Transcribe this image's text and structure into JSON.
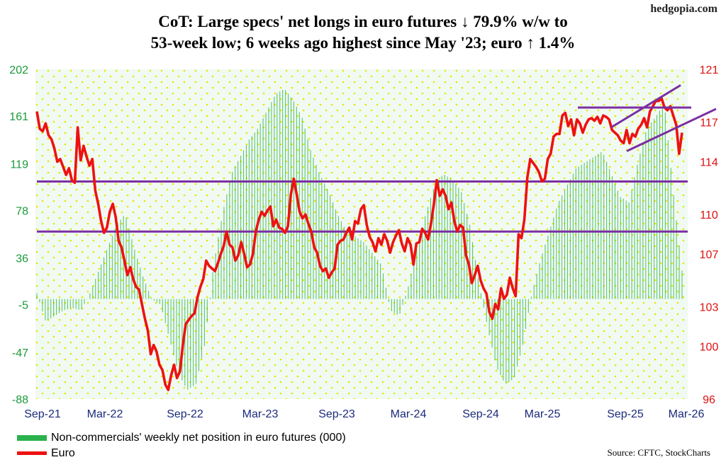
{
  "brand": "hedgopia.com",
  "title_line1": "CoT: Large specs' net longs in euro futures ↓ 79.9% w/w to",
  "title_line2": "53-week low; 6 weeks ago highest since May '23; euro ↑ 1.4%",
  "legend": {
    "positions": "Non-commercials' weekly net position in euro futures (000)",
    "euro": "Euro"
  },
  "source": "Source: CFTC, StockCharts",
  "colors": {
    "positions": "#2bb24c",
    "euro": "#ee1111",
    "channel": "#7b2fa3",
    "left_axis": "#1a9a3a",
    "right_axis": "#dd1111",
    "dots": "#e6e600",
    "plot_bg": "#e9f7ec"
  },
  "chart_data": {
    "type": "bar+line",
    "x_tick_labels": [
      "Sep-21",
      "Mar-22",
      "Sep-22",
      "Mar-23",
      "Sep-23",
      "Mar-24",
      "Sep-24",
      "Mar-25",
      "Sep-25",
      "Mar-26"
    ],
    "left_axis": {
      "ticks": [
        202,
        161,
        119,
        78,
        36,
        -5,
        -47,
        -88
      ],
      "ylim": [
        -88,
        202
      ]
    },
    "right_axis": {
      "ticks": [
        121,
        117,
        114,
        110,
        107,
        103,
        100,
        96
      ],
      "ylim": [
        96,
        121
      ]
    },
    "horizontal_lines_euro": [
      112.5,
      108.7
    ],
    "positions_monthly": [
      5,
      -20,
      -15,
      -10,
      -8,
      -10,
      5,
      25,
      45,
      65,
      75,
      45,
      20,
      0,
      -5,
      -35,
      -65,
      -80,
      -75,
      -40,
      30,
      75,
      110,
      125,
      140,
      150,
      165,
      180,
      185,
      175,
      160,
      130,
      110,
      95,
      75,
      60,
      55,
      50,
      40,
      30,
      -10,
      -15,
      10,
      45,
      75,
      100,
      110,
      105,
      95,
      65,
      15,
      -25,
      -60,
      -75,
      -70,
      -40,
      5,
      35,
      60,
      85,
      100,
      115,
      120,
      125,
      130,
      110,
      90,
      85,
      120,
      150,
      160,
      172,
      95,
      25
    ],
    "euro_weekly": [
      117.8,
      116.5,
      116.3,
      116.9,
      116.0,
      115.7,
      115.0,
      114.0,
      114.2,
      113.6,
      113.0,
      113.5,
      112.6,
      112.4,
      116.6,
      114.1,
      115.2,
      114.4,
      113.7,
      114.2,
      111.8,
      110.8,
      109.5,
      108.6,
      109.0,
      110.2,
      110.8,
      109.8,
      108.0,
      107.5,
      106.5,
      105.4,
      106.0,
      105.1,
      104.5,
      104.3,
      103.2,
      102.1,
      101.2,
      99.4,
      100.1,
      99.6,
      98.6,
      98.2,
      97.1,
      96.7,
      97.8,
      98.6,
      97.6,
      98.1,
      100.1,
      101.7,
      102.0,
      102.3,
      102.5,
      103.7,
      104.5,
      105.1,
      106.5,
      106.1,
      105.9,
      105.7,
      106.3,
      107.0,
      107.6,
      108.7,
      107.7,
      107.5,
      106.5,
      106.9,
      107.9,
      107.0,
      106.0,
      106.2,
      107.0,
      108.7,
      109.6,
      110.2,
      109.9,
      110.3,
      110.6,
      109.1,
      109.6,
      109.0,
      108.9,
      108.6,
      109.1,
      111.5,
      112.7,
      111.5,
      110.2,
      109.7,
      110.0,
      109.3,
      108.7,
      107.5,
      107.1,
      106.1,
      105.7,
      105.9,
      105.2,
      105.6,
      105.9,
      107.7,
      108.0,
      108.1,
      108.6,
      109.0,
      108.1,
      109.5,
      109.3,
      110.4,
      110.7,
      109.2,
      108.3,
      107.9,
      107.2,
      108.2,
      107.7,
      108.5,
      108.0,
      107.1,
      107.9,
      108.4,
      108.8,
      107.8,
      107.2,
      108.2,
      107.7,
      106.2,
      107.8,
      107.9,
      108.9,
      108.6,
      108.1,
      109.3,
      110.8,
      112.6,
      111.4,
      111.9,
      111.4,
      110.4,
      110.9,
      109.5,
      108.7,
      109.2,
      109.0,
      106.9,
      106.2,
      104.8,
      105.4,
      106.1,
      105.0,
      104.4,
      104.0,
      102.6,
      102.1,
      103.2,
      102.8,
      104.4,
      103.6,
      103.9,
      105.2,
      104.4,
      103.8,
      108.5,
      108.2,
      109.6,
      112.8,
      114.2,
      113.9,
      113.6,
      113.2,
      112.5,
      112.7,
      114.2,
      114.6,
      115.9,
      116.1,
      116.1,
      117.5,
      117.7,
      116.7,
      117.2,
      116.0,
      117.2,
      116.9,
      116.2,
      116.8,
      117.2,
      117.3,
      117.1,
      117.4,
      116.9,
      117.5,
      117.4,
      117.2,
      116.4,
      116.2,
      116.0,
      115.6,
      115.4,
      116.4,
      115.4,
      116.1,
      115.9,
      116.5,
      116.8,
      117.3,
      116.6,
      117.8,
      118.2,
      118.6,
      118.6,
      118.8,
      118.1,
      117.9,
      118.2,
      117.5,
      116.8,
      114.6,
      116.2
    ],
    "channel_lines": [
      {
        "from": [
          "Jun-25",
          118.1
        ],
        "to": [
          "Mar-26",
          118.1
        ]
      },
      {
        "from": [
          "Aug-25",
          116.6
        ],
        "to": [
          "Mar-26",
          119.8
        ]
      },
      {
        "from": [
          "Oct-25",
          114.8
        ],
        "to": [
          "Mar-26",
          118.0
        ]
      }
    ]
  }
}
